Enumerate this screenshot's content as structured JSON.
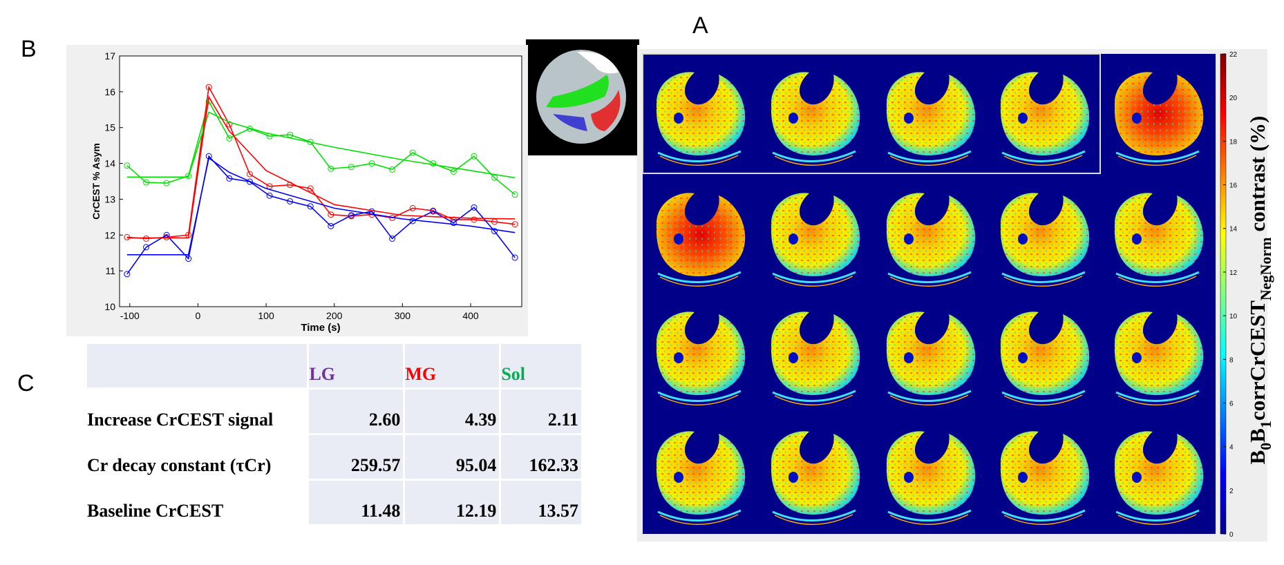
{
  "panel_labels": {
    "a": "A",
    "b": "B",
    "c": "C"
  },
  "chart_data": {
    "type": "line",
    "ylabel": "CrCEST % Asym",
    "xlabel": "Time (s)",
    "xlim": [
      -115,
      475
    ],
    "ylim": [
      10,
      17
    ],
    "xticks": [
      -100,
      0,
      100,
      200,
      300,
      400
    ],
    "yticks": [
      10,
      11,
      12,
      13,
      14,
      15,
      16,
      17
    ],
    "series": [
      {
        "color": "#00e000",
        "marker": "circle",
        "x": [
          -104,
          -76,
          -46,
          -14,
          16,
          46,
          76,
          105,
          135,
          165,
          195,
          225,
          255,
          285,
          315,
          345,
          375,
          405,
          435,
          465
        ],
        "values": [
          13.94,
          13.47,
          13.45,
          13.65,
          15.73,
          14.7,
          14.97,
          14.76,
          14.8,
          14.6,
          13.85,
          13.9,
          14.0,
          13.83,
          14.3,
          14.0,
          13.77,
          14.2,
          13.6,
          13.13
        ]
      },
      {
        "color": "#ff0000",
        "marker": "circle",
        "x": [
          -104,
          -76,
          -46,
          -14,
          16,
          46,
          76,
          105,
          135,
          165,
          195,
          225,
          255,
          285,
          315,
          345,
          375,
          405,
          435,
          465
        ],
        "values": [
          11.94,
          11.9,
          11.94,
          12.0,
          16.13,
          15.09,
          13.7,
          13.36,
          13.4,
          13.3,
          12.57,
          12.53,
          12.57,
          12.48,
          12.75,
          12.68,
          12.43,
          12.43,
          12.37,
          12.3
        ]
      },
      {
        "color": "#0000ff",
        "marker": "circle",
        "x": [
          -104,
          -76,
          -46,
          -14,
          16,
          46,
          76,
          105,
          135,
          165,
          195,
          225,
          255,
          285,
          315,
          345,
          375,
          405,
          435,
          465
        ],
        "values": [
          10.91,
          11.66,
          12.0,
          11.34,
          14.2,
          13.58,
          13.49,
          13.1,
          12.94,
          12.8,
          12.25,
          12.55,
          12.66,
          11.9,
          12.39,
          12.66,
          12.34,
          12.77,
          12.11,
          11.37
        ]
      },
      {
        "color": "#00e000",
        "marker": "none",
        "x": [
          -104,
          -14,
          16,
          46,
          100,
          200,
          300,
          400,
          465
        ],
        "values": [
          13.62,
          13.62,
          15.43,
          15.15,
          14.85,
          14.45,
          14.1,
          13.8,
          13.6
        ]
      },
      {
        "color": "#ff0000",
        "marker": "none",
        "x": [
          -104,
          -14,
          16,
          46,
          100,
          200,
          300,
          400,
          465
        ],
        "values": [
          11.92,
          11.92,
          15.85,
          14.9,
          13.8,
          12.85,
          12.55,
          12.47,
          12.45
        ]
      },
      {
        "color": "#0000ff",
        "marker": "none",
        "x": [
          -104,
          -14,
          16,
          46,
          100,
          200,
          300,
          400,
          465
        ],
        "values": [
          11.45,
          11.45,
          14.15,
          13.75,
          13.3,
          12.75,
          12.45,
          12.25,
          12.07
        ]
      }
    ]
  },
  "table": {
    "header": [
      "LG",
      "MG",
      "Sol"
    ],
    "header_colors": [
      "#7030a0",
      "#ff0000",
      "#00b050"
    ],
    "rows": [
      {
        "label": "Increase CrCEST signal",
        "values": [
          "2.60",
          "4.39",
          "2.11"
        ]
      },
      {
        "label": "Cr decay constant (τCr)",
        "values": [
          "259.57",
          "95.04",
          "162.33"
        ]
      },
      {
        "label": "Baseline CrCEST",
        "values": [
          "11.48",
          "12.19",
          "13.57"
        ]
      }
    ]
  },
  "colorbar": {
    "lim": [
      0,
      22
    ],
    "ticks": [
      0,
      2,
      4,
      6,
      8,
      10,
      12,
      14,
      16,
      18,
      20,
      22
    ],
    "label_parts": [
      "B",
      "0",
      "B",
      "1",
      "corrCrCEST",
      "NegNorm",
      "contrast (%)"
    ]
  }
}
